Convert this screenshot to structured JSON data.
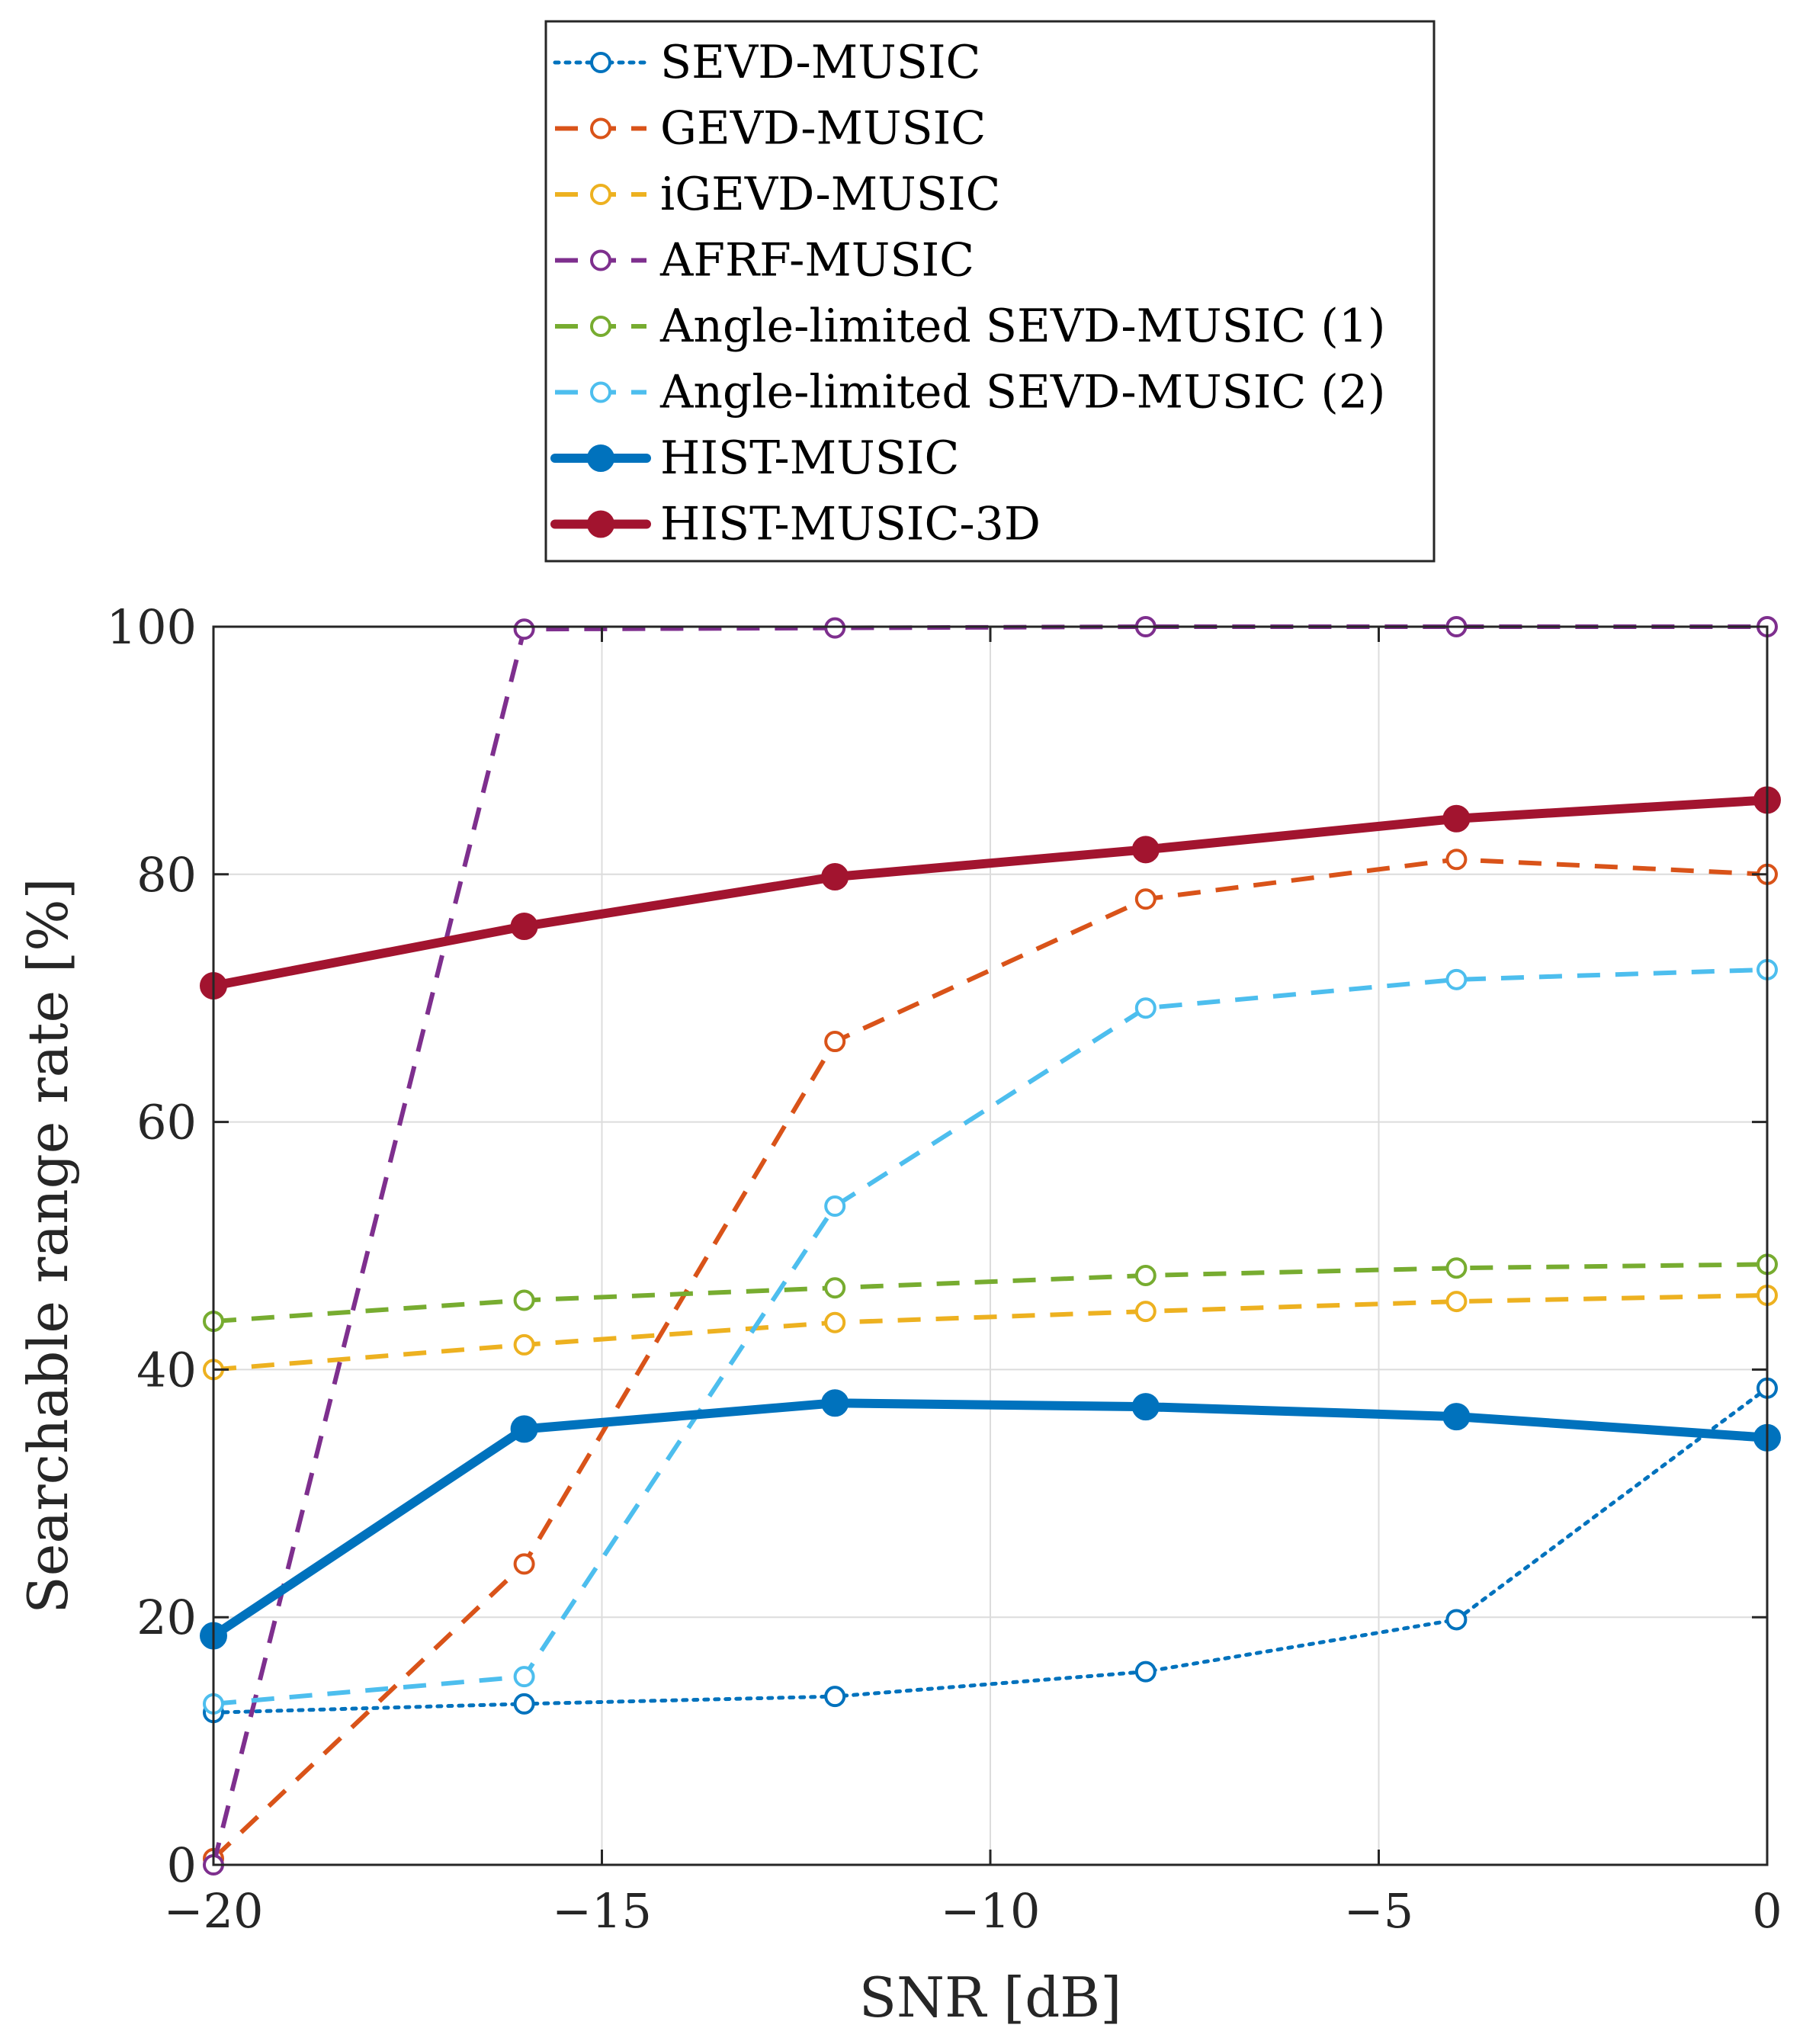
{
  "chart_data": {
    "type": "line",
    "title": "",
    "xlabel": "SNR [dB]",
    "ylabel": "Searchable range rate [%]",
    "xlim": [
      -20,
      0
    ],
    "ylim": [
      0,
      100
    ],
    "xticks": [
      -20,
      -15,
      -10,
      -5,
      0
    ],
    "xtick_labels": [
      "−20",
      "−15",
      "−10",
      "−5",
      "0"
    ],
    "yticks": [
      0,
      20,
      40,
      60,
      80,
      100
    ],
    "ytick_labels": [
      "0",
      "20",
      "40",
      "60",
      "80",
      "100"
    ],
    "grid": true,
    "legend_position": "top (outside, above plot)",
    "x": [
      -20,
      -16,
      -12,
      -8,
      -4,
      0
    ],
    "series": [
      {
        "name": "SEVD-MUSIC",
        "color": "#0072BD",
        "style": "dotted",
        "marker": "open-circle",
        "values": [
          12.3,
          13.0,
          13.6,
          15.6,
          19.8,
          38.5
        ]
      },
      {
        "name": "GEVD-MUSIC",
        "color": "#D95319",
        "style": "dashed",
        "marker": "open-circle",
        "values": [
          0.5,
          24.3,
          66.5,
          78.0,
          81.2,
          80.0
        ]
      },
      {
        "name": "iGEVD-MUSIC",
        "color": "#EDB120",
        "style": "dashed",
        "marker": "open-circle",
        "values": [
          40.0,
          42.0,
          43.8,
          44.7,
          45.5,
          46.0
        ]
      },
      {
        "name": "AFRF-MUSIC",
        "color": "#7E2F8E",
        "style": "dashed",
        "marker": "open-circle",
        "values": [
          0.0,
          99.8,
          99.9,
          100.0,
          100.0,
          100.0
        ]
      },
      {
        "name": "Angle-limited SEVD-MUSIC (1)",
        "color": "#77AC30",
        "style": "dashed",
        "marker": "open-circle",
        "values": [
          43.9,
          45.6,
          46.6,
          47.6,
          48.2,
          48.5
        ]
      },
      {
        "name": "Angle-limited SEVD-MUSIC (2)",
        "color": "#4DBEEE",
        "style": "dashed",
        "marker": "open-circle",
        "values": [
          13.0,
          15.2,
          53.2,
          69.2,
          71.5,
          72.3
        ]
      },
      {
        "name": "HIST-MUSIC",
        "color": "#0072BD",
        "style": "solid-thick",
        "marker": "filled-circle",
        "values": [
          18.5,
          35.2,
          37.3,
          37.0,
          36.2,
          34.5
        ]
      },
      {
        "name": "HIST-MUSIC-3D",
        "color": "#A2142F",
        "style": "solid-thick",
        "marker": "filled-circle",
        "values": [
          71.0,
          75.8,
          79.8,
          82.0,
          84.5,
          86.0
        ]
      }
    ]
  }
}
